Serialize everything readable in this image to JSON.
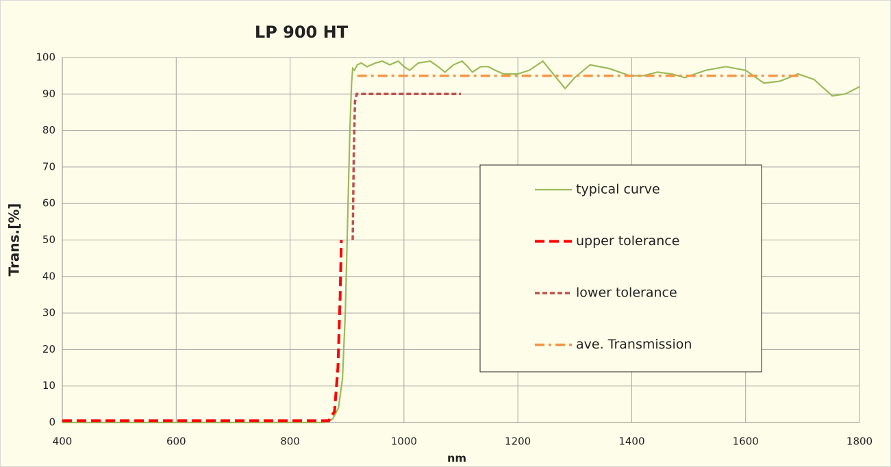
{
  "chart_data": {
    "type": "line",
    "title": "LP 900 HT",
    "x_label": "nm",
    "y_label": "Trans.[%]",
    "xlim": [
      400,
      1800
    ],
    "xticks": [
      400,
      600,
      800,
      1000,
      1200,
      1400,
      1600,
      1800
    ],
    "ylim": [
      0,
      100
    ],
    "yticks": [
      0,
      10,
      20,
      30,
      40,
      50,
      60,
      70,
      80,
      90,
      100
    ],
    "grid": true,
    "legend": "right",
    "series": [
      {
        "name": "typical curve",
        "color": "#9bbb59",
        "dash": "solid",
        "x": [
          400,
          860,
          875,
          885,
          892,
          897,
          901,
          905,
          908,
          910,
          913,
          918,
          925,
          935,
          950,
          962,
          975,
          990,
          1000,
          1010,
          1025,
          1046,
          1060,
          1072,
          1087,
          1102,
          1112,
          1120,
          1135,
          1148,
          1160,
          1175,
          1200,
          1220,
          1244,
          1262,
          1283,
          1300,
          1327,
          1360,
          1397,
          1420,
          1445,
          1470,
          1493,
          1530,
          1565,
          1600,
          1632,
          1660,
          1692,
          1720,
          1752,
          1775,
          1800
        ],
        "values": [
          0,
          0,
          1,
          4,
          12,
          30,
          55,
          80,
          93,
          97,
          96.5,
          98,
          98.5,
          97.5,
          98.5,
          99,
          98,
          99,
          97.5,
          96.5,
          98.5,
          99,
          97.5,
          96,
          98,
          99,
          97.5,
          96,
          97.5,
          97.5,
          96.5,
          95.5,
          95.5,
          96.5,
          99,
          95.5,
          91.5,
          94.5,
          98,
          97,
          95,
          95,
          96,
          95.5,
          94.5,
          96.5,
          97.5,
          96.5,
          93,
          93.5,
          95.5,
          94,
          89.5,
          90,
          92
        ]
      },
      {
        "name": "upper tolerance",
        "color": "#ff0000",
        "dash": "dashed",
        "x": [
          400,
          868,
          878,
          884,
          888,
          890
        ],
        "values": [
          0.5,
          0.5,
          3,
          15,
          35,
          50
        ]
      },
      {
        "name": "lower tolerance",
        "color": "#c0504d",
        "dash": "dotted",
        "x": [
          910,
          912,
          914,
          917,
          1100
        ],
        "values": [
          50,
          75,
          88,
          90,
          90
        ]
      },
      {
        "name": "ave. Transmission",
        "color": "#f79646",
        "dash": "dashdot",
        "x": [
          918,
          1700
        ],
        "values": [
          95,
          95
        ]
      }
    ]
  }
}
